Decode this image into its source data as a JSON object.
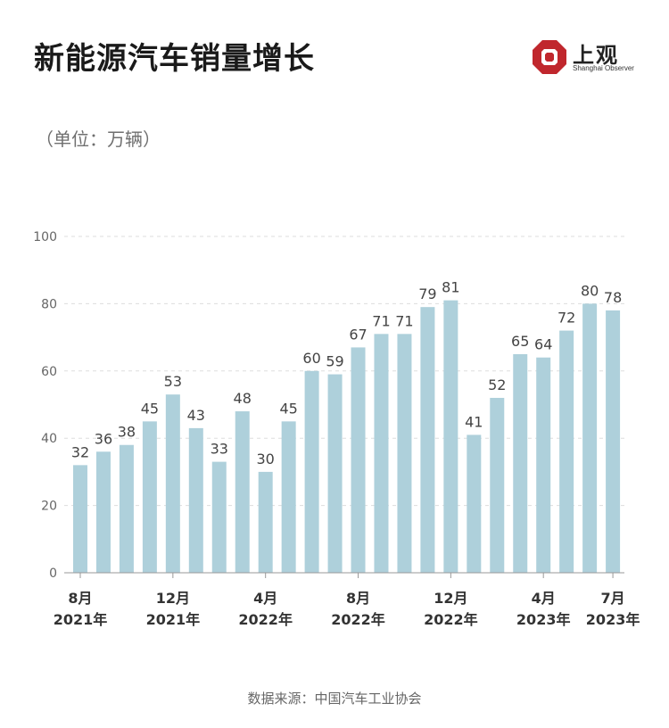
{
  "title": "新能源汽车销量增长",
  "unit_label": "（单位：万辆）",
  "logo": {
    "cn": "上观",
    "en": "Shanghai Observer"
  },
  "source": "数据来源：中国汽车工业协会",
  "colors": {
    "bar": "#aed0db",
    "grid": "#dddddd",
    "axis": "#999999",
    "label": "#444444",
    "logo_red": "#c0272d"
  },
  "chart_data": {
    "type": "bar",
    "ylim": [
      0,
      100
    ],
    "yticks": [
      0,
      20,
      40,
      60,
      80,
      100
    ],
    "grid": "dashed horizontal",
    "values": [
      32,
      36,
      38,
      45,
      53,
      43,
      33,
      48,
      30,
      45,
      60,
      59,
      67,
      71,
      71,
      79,
      81,
      41,
      52,
      65,
      64,
      72,
      80,
      78
    ],
    "x_ticks": [
      {
        "index": 0,
        "line1": "8月",
        "line2": "2021年"
      },
      {
        "index": 4,
        "line1": "12月",
        "line2": "2021年"
      },
      {
        "index": 8,
        "line1": "4月",
        "line2": "2022年"
      },
      {
        "index": 12,
        "line1": "8月",
        "line2": "2022年"
      },
      {
        "index": 16,
        "line1": "12月",
        "line2": "2022年"
      },
      {
        "index": 20,
        "line1": "4月",
        "line2": "2023年"
      },
      {
        "index": 23,
        "line1": "7月",
        "line2": "2023年"
      }
    ]
  }
}
